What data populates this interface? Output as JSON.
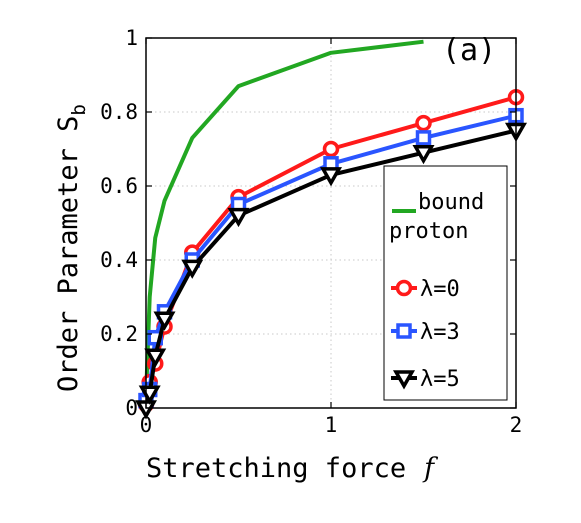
{
  "chart_data": {
    "type": "line",
    "panel_label": "(a)",
    "xlabel": "Stretching force",
    "xlabel_symbol": "f",
    "ylabel": "Order Parameter S",
    "ylabel_sub": "b",
    "xlim": [
      0,
      2
    ],
    "ylim": [
      0,
      1
    ],
    "x_ticks": [
      0,
      1,
      2
    ],
    "x_tick_labels": [
      "0",
      "1",
      "2"
    ],
    "y_ticks": [
      0,
      0.2,
      0.4,
      0.6,
      0.8,
      1
    ],
    "y_tick_labels": [
      "0",
      "0.2",
      "0.4",
      "0.6",
      "0.8",
      "1"
    ],
    "grid": true,
    "legend_position": "right",
    "series": [
      {
        "key": "bound",
        "name": "bound proton",
        "name_lines": [
          "bound",
          "proton"
        ],
        "color": "#22a722",
        "marker": "none",
        "x": [
          0,
          0.02,
          0.05,
          0.1,
          0.25,
          0.5,
          1.0,
          1.5
        ],
        "y": [
          0.03,
          0.3,
          0.46,
          0.56,
          0.73,
          0.87,
          0.96,
          0.99
        ]
      },
      {
        "key": "l0",
        "name": "λ=0",
        "color": "#ff1a1a",
        "marker": "circle",
        "x": [
          0,
          0.02,
          0.05,
          0.1,
          0.25,
          0.5,
          1.0,
          1.5,
          2.0
        ],
        "y": [
          0.01,
          0.07,
          0.12,
          0.22,
          0.42,
          0.57,
          0.7,
          0.77,
          0.84
        ]
      },
      {
        "key": "l3",
        "name": "λ=3",
        "color": "#2a55ff",
        "marker": "square",
        "x": [
          0,
          0.02,
          0.05,
          0.1,
          0.25,
          0.5,
          1.0,
          1.5,
          2.0
        ],
        "y": [
          0.02,
          0.05,
          0.19,
          0.26,
          0.4,
          0.55,
          0.66,
          0.73,
          0.79
        ]
      },
      {
        "key": "l5",
        "name": "λ=5",
        "color": "#000000",
        "marker": "triangle-down",
        "x": [
          0,
          0.02,
          0.05,
          0.1,
          0.25,
          0.5,
          1.0,
          1.5,
          2.0
        ],
        "y": [
          0.0,
          0.04,
          0.14,
          0.24,
          0.38,
          0.52,
          0.63,
          0.69,
          0.75
        ]
      }
    ]
  }
}
